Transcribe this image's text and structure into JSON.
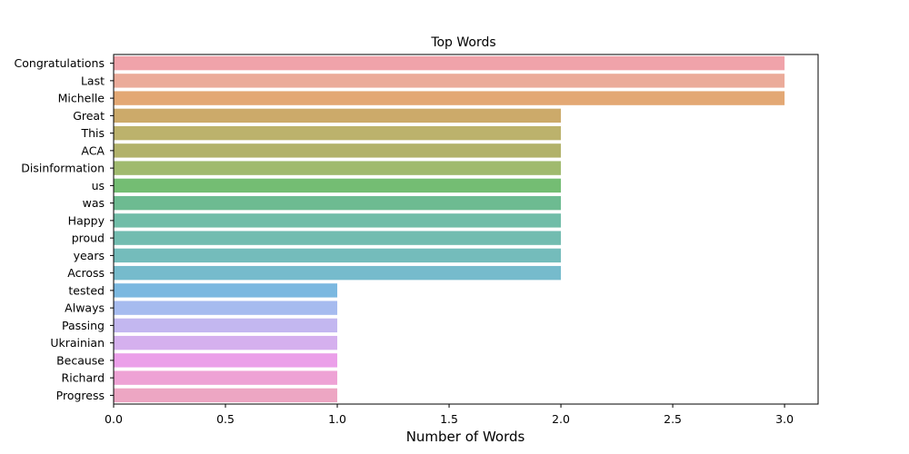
{
  "chart_data": {
    "type": "bar",
    "orientation": "horizontal",
    "title": "Top Words",
    "xlabel": "Number of Words",
    "ylabel": "",
    "xlim": [
      0,
      3.15
    ],
    "xticks": [
      "0.0",
      "0.5",
      "1.0",
      "1.5",
      "2.0",
      "2.5",
      "3.0"
    ],
    "grid": false,
    "categories": [
      "Congratulations",
      "Last",
      "Michelle",
      "Great",
      "This",
      "ACA",
      "Disinformation",
      "us",
      "was",
      "Happy",
      "proud",
      "years",
      "Across",
      "tested",
      "Always",
      "Passing",
      "Ukrainian",
      "Because",
      "Richard",
      "Progress"
    ],
    "values": [
      3,
      3,
      3,
      2,
      2,
      2,
      2,
      2,
      2,
      2,
      2,
      2,
      2,
      1,
      1,
      1,
      1,
      1,
      1,
      1
    ],
    "colors": [
      "#f0a3aa",
      "#ebab9a",
      "#e3a874",
      "#ccaa6a",
      "#bcb26c",
      "#b2b26a",
      "#a0ba6e",
      "#74bd73",
      "#6dbb91",
      "#71bda8",
      "#72bcb0",
      "#74bcbb",
      "#76bbcc",
      "#7bb8e0",
      "#a6bbef",
      "#c3b7f0",
      "#d5b0ee",
      "#eb9fe9",
      "#eea2d5",
      "#eda6c3"
    ]
  }
}
